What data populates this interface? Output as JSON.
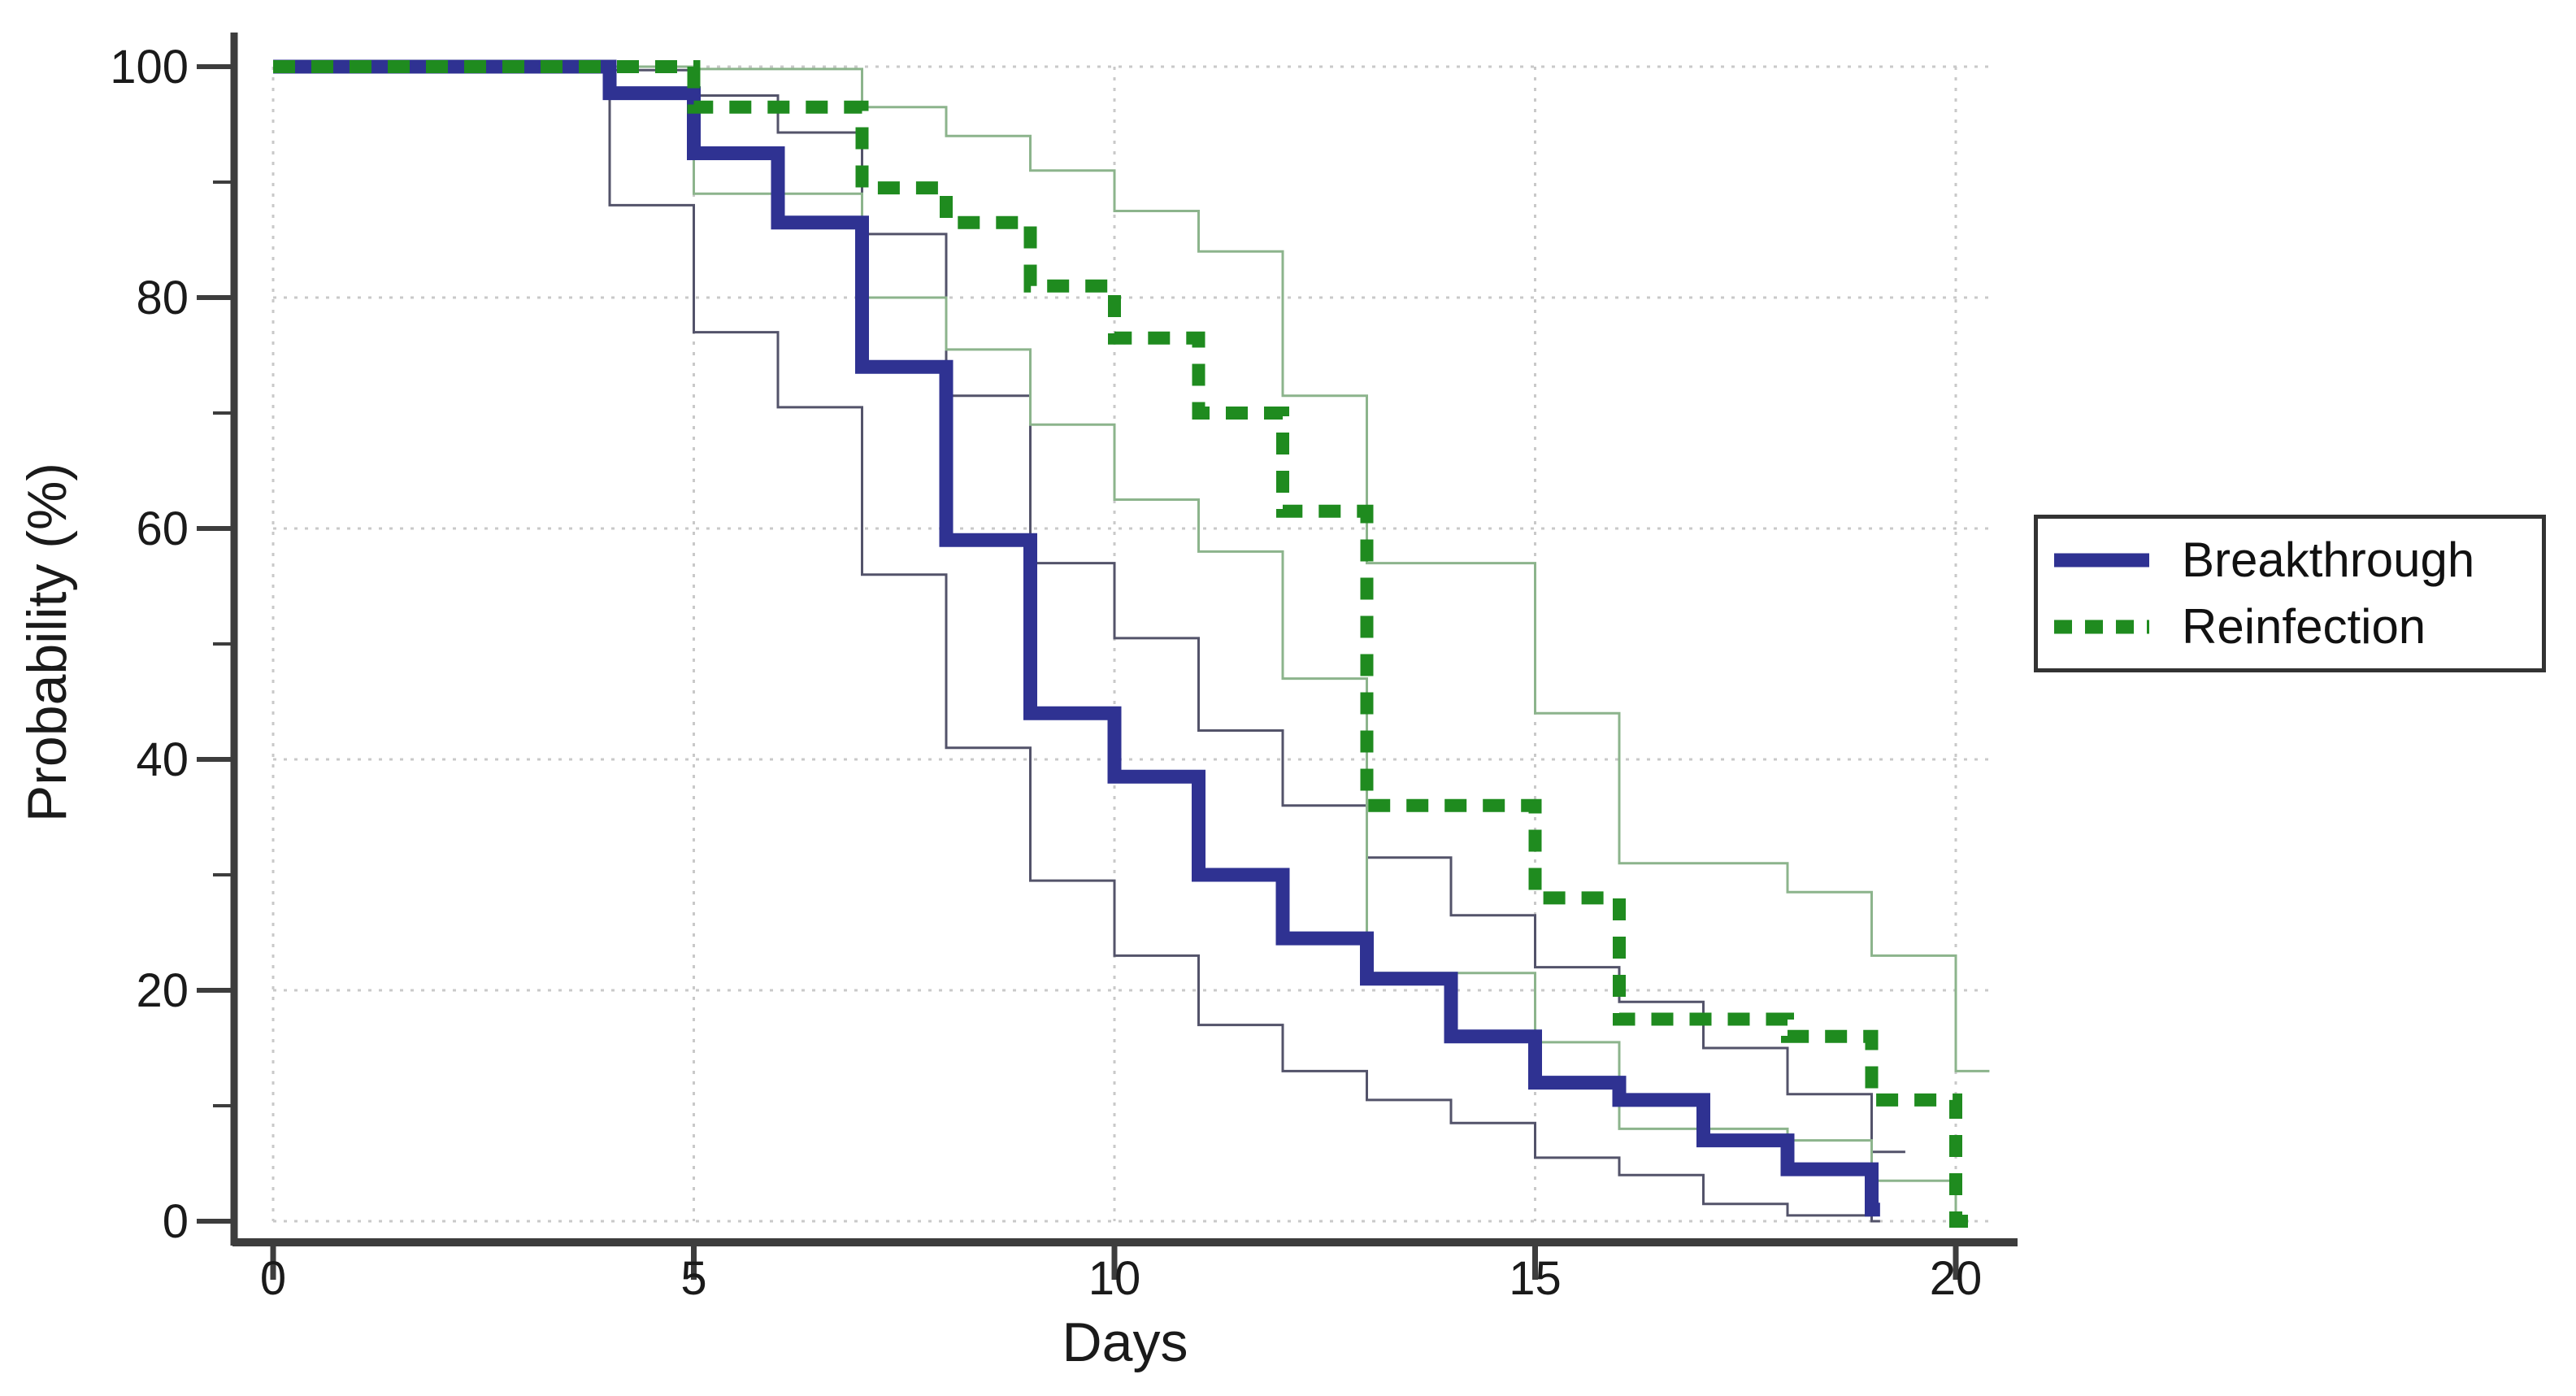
{
  "figure": {
    "kind": "kaplan-meier-survival-plot",
    "background": "#ffffff"
  },
  "colors": {
    "breakthrough_line": "#2f3292",
    "reinfection_line": "#1f8b1f",
    "breakthrough_ci_line": "#53536a",
    "reinfection_ci_line": "#8cb48c",
    "axis": "#3d3d3d",
    "grid": "#c9c9c9",
    "text": "#1a1a1a"
  },
  "legend": {
    "items": [
      {
        "label": "Breakthrough",
        "color": "#2f3292",
        "style": "solid"
      },
      {
        "label": "Reinfection",
        "color": "#1f8b1f",
        "style": "dashed"
      }
    ]
  },
  "chart_data": {
    "type": "line",
    "subtype": "step-survival-curves-with-confidence-bands",
    "title": "",
    "xlabel": "Days",
    "ylabel": "Probability (%)",
    "xlim": [
      0,
      20.6
    ],
    "ylim": [
      0,
      100
    ],
    "x_ticks": [
      0,
      5,
      10,
      15,
      20
    ],
    "y_ticks": [
      100,
      80,
      60,
      40,
      20,
      0
    ],
    "y_minor_ticks": [
      90,
      70,
      50,
      30,
      10
    ],
    "grid": "fine dotted gridlines at major x and y ticks",
    "legend_position": "outside right, boxed",
    "series": [
      {
        "name": "Breakthrough",
        "role": "estimate",
        "color": "#2f3292",
        "style": "solid",
        "stroke_width": 17,
        "start": [
          0,
          100
        ],
        "steps": [
          [
            4,
            97.7
          ],
          [
            5,
            92.5
          ],
          [
            6,
            86.5
          ],
          [
            7,
            74
          ],
          [
            8,
            59
          ],
          [
            9,
            44
          ],
          [
            10,
            38.5
          ],
          [
            11,
            30
          ],
          [
            12,
            24.5
          ],
          [
            13,
            21
          ],
          [
            14,
            16
          ],
          [
            15,
            12
          ],
          [
            16,
            10.5
          ],
          [
            17,
            7
          ],
          [
            18,
            4.5
          ],
          [
            19,
            1
          ]
        ],
        "end_day": 19.1
      },
      {
        "name": "Breakthrough upper 95% CI",
        "role": "ci-upper",
        "color": "#53536a",
        "style": "solid",
        "stroke_width": 3,
        "start": [
          0,
          100
        ],
        "steps": [
          [
            4,
            99.7
          ],
          [
            5,
            97.5
          ],
          [
            6,
            94.3
          ],
          [
            7,
            85.5
          ],
          [
            8,
            71.5
          ],
          [
            9,
            57
          ],
          [
            10,
            50.5
          ],
          [
            11,
            42.5
          ],
          [
            12,
            36
          ],
          [
            13,
            31.5
          ],
          [
            14,
            26.5
          ],
          [
            15,
            22
          ],
          [
            16,
            19
          ],
          [
            17,
            15
          ],
          [
            18,
            11
          ],
          [
            19,
            6
          ]
        ],
        "end_day": 19.4
      },
      {
        "name": "Breakthrough lower 95% CI",
        "role": "ci-lower",
        "color": "#53536a",
        "style": "solid",
        "stroke_width": 3,
        "start": [
          0,
          100
        ],
        "steps": [
          [
            4,
            88
          ],
          [
            5,
            77
          ],
          [
            6,
            70.5
          ],
          [
            7,
            56
          ],
          [
            8,
            41
          ],
          [
            9,
            29.5
          ],
          [
            10,
            23
          ],
          [
            11,
            17
          ],
          [
            12,
            13
          ],
          [
            13,
            10.5
          ],
          [
            14,
            8.5
          ],
          [
            15,
            5.5
          ],
          [
            16,
            4
          ],
          [
            17,
            1.5
          ],
          [
            18,
            0.5
          ],
          [
            19,
            0
          ]
        ],
        "end_day": 19.1
      },
      {
        "name": "Reinfection",
        "role": "estimate",
        "color": "#1f8b1f",
        "style": "dashed",
        "stroke_width": 16,
        "dash": [
          27,
          20
        ],
        "start": [
          0,
          100
        ],
        "steps": [
          [
            5,
            96.5
          ],
          [
            7,
            89.5
          ],
          [
            8,
            86.5
          ],
          [
            9,
            81
          ],
          [
            10,
            76.5
          ],
          [
            11,
            70
          ],
          [
            12,
            61.5
          ],
          [
            13,
            36
          ],
          [
            15,
            28
          ],
          [
            16,
            17.5
          ],
          [
            18,
            16
          ],
          [
            19,
            10.5
          ],
          [
            20,
            0
          ]
        ],
        "end_day": 20.15
      },
      {
        "name": "Reinfection upper 95% CI",
        "role": "ci-upper",
        "color": "#8cb48c",
        "style": "solid",
        "stroke_width": 3,
        "start": [
          0,
          100
        ],
        "steps": [
          [
            5,
            99.8
          ],
          [
            7,
            96.5
          ],
          [
            8,
            94
          ],
          [
            9,
            91
          ],
          [
            10,
            87.5
          ],
          [
            11,
            84
          ],
          [
            12,
            71.5
          ],
          [
            13,
            57
          ],
          [
            15,
            44
          ],
          [
            16,
            31
          ],
          [
            18,
            28.5
          ],
          [
            19,
            23
          ],
          [
            20,
            13
          ]
        ],
        "end_day": 20.4
      },
      {
        "name": "Reinfection lower 95% CI",
        "role": "ci-lower",
        "color": "#8cb48c",
        "style": "solid",
        "stroke_width": 3,
        "start": [
          0,
          100
        ],
        "steps": [
          [
            5,
            89
          ],
          [
            7,
            80
          ],
          [
            8,
            75.5
          ],
          [
            9,
            69
          ],
          [
            10,
            62.5
          ],
          [
            11,
            58
          ],
          [
            12,
            47
          ],
          [
            13,
            21.5
          ],
          [
            15,
            15.5
          ],
          [
            16,
            8
          ],
          [
            18,
            7
          ],
          [
            19,
            3.5
          ],
          [
            20,
            0
          ]
        ],
        "end_day": 20.15
      }
    ]
  }
}
